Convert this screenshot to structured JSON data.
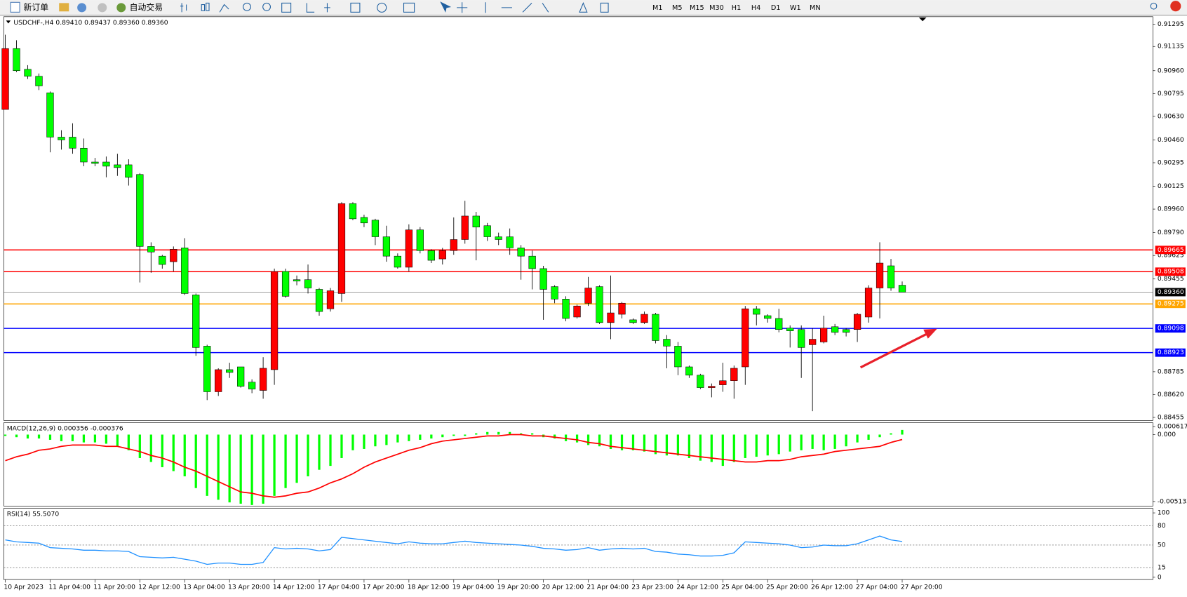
{
  "toolbar": {
    "new_order": "新订单",
    "auto_trading": "自动交易",
    "timeframes": [
      "M1",
      "M5",
      "M15",
      "M30",
      "H1",
      "H4",
      "D1",
      "W1",
      "MN"
    ]
  },
  "chart": {
    "header": "USDCHF-,H4  0.89410 0.89437 0.89360 0.89360",
    "bull_color": "#ff0000",
    "bear_color": "#00ff00",
    "open": [
      0.9068,
      0.9112,
      0.9097,
      0.9092,
      0.908,
      0.9048,
      0.9048,
      0.904,
      0.903,
      0.903,
      0.9028,
      0.9028,
      0.9021,
      0.8969,
      0.8962,
      0.8958,
      0.8968,
      0.8934,
      0.8897,
      0.8864,
      0.888,
      0.8882,
      0.8871,
      0.8865,
      0.888,
      0.8951,
      0.8945,
      0.8945,
      0.8938,
      0.8924,
      0.8935,
      0.9,
      0.899,
      0.8988,
      0.8976,
      0.8962,
      0.8954,
      0.8981,
      0.8966,
      0.896,
      0.8966,
      0.8974,
      0.8991,
      0.8984,
      0.8976,
      0.8976,
      0.8968,
      0.8962,
      0.8953,
      0.894,
      0.8931,
      0.8918,
      0.8928,
      0.894,
      0.8914,
      0.892,
      0.8916,
      0.8914,
      0.892,
      0.8902,
      0.8897,
      0.8882,
      0.8876,
      0.8867,
      0.8869,
      0.8872,
      0.8882,
      0.8924,
      0.8919,
      0.8917,
      0.891,
      0.8909,
      0.8898,
      0.89,
      0.8911,
      0.8909,
      0.8909,
      0.8918,
      0.8939,
      0.8955,
      0.8941
    ],
    "high": [
      0.9122,
      0.9118,
      0.91,
      0.9094,
      0.9081,
      0.9053,
      0.9058,
      0.9047,
      0.9033,
      0.9034,
      0.9036,
      0.9032,
      0.9022,
      0.8972,
      0.8963,
      0.8969,
      0.8975,
      0.8935,
      0.8898,
      0.8881,
      0.8885,
      0.8882,
      0.8873,
      0.8889,
      0.8953,
      0.8953,
      0.8948,
      0.8956,
      0.8939,
      0.8939,
      0.9001,
      0.9001,
      0.8992,
      0.8989,
      0.8984,
      0.8964,
      0.8985,
      0.8983,
      0.8967,
      0.8968,
      0.899,
      0.9002,
      0.8994,
      0.8986,
      0.8979,
      0.8982,
      0.897,
      0.8966,
      0.8955,
      0.8941,
      0.8933,
      0.8927,
      0.8947,
      0.8941,
      0.8948,
      0.8929,
      0.8917,
      0.8922,
      0.8921,
      0.8905,
      0.89,
      0.8883,
      0.8877,
      0.887,
      0.8885,
      0.8883,
      0.8926,
      0.8926,
      0.892,
      0.8924,
      0.8912,
      0.8912,
      0.891,
      0.8919,
      0.8913,
      0.891,
      0.8921,
      0.8941,
      0.8972,
      0.896,
      0.89437
    ],
    "low": [
      0.9068,
      0.9095,
      0.909,
      0.9082,
      0.9037,
      0.9039,
      0.9036,
      0.9027,
      0.9027,
      0.9019,
      0.902,
      0.9013,
      0.8943,
      0.895,
      0.8953,
      0.8951,
      0.8934,
      0.889,
      0.8858,
      0.8861,
      0.8874,
      0.8867,
      0.8863,
      0.8859,
      0.8869,
      0.8932,
      0.8941,
      0.8935,
      0.8919,
      0.8922,
      0.8929,
      0.8988,
      0.8983,
      0.897,
      0.8958,
      0.8953,
      0.8951,
      0.8964,
      0.8957,
      0.8956,
      0.8963,
      0.8971,
      0.8959,
      0.8973,
      0.897,
      0.8963,
      0.8945,
      0.8938,
      0.8916,
      0.8928,
      0.8915,
      0.8917,
      0.8926,
      0.8913,
      0.8902,
      0.8917,
      0.8913,
      0.8913,
      0.8899,
      0.8881,
      0.8876,
      0.8874,
      0.8866,
      0.886,
      0.8864,
      0.8859,
      0.8869,
      0.8912,
      0.8914,
      0.8907,
      0.8896,
      0.8874,
      0.885,
      0.8899,
      0.8905,
      0.8904,
      0.89,
      0.8914,
      0.8917,
      0.8937,
      0.8936
    ],
    "close": [
      0.9112,
      0.9096,
      0.9092,
      0.9085,
      0.9048,
      0.9046,
      0.904,
      0.903,
      0.9029,
      0.9027,
      0.9026,
      0.9019,
      0.8969,
      0.8965,
      0.8956,
      0.8967,
      0.8935,
      0.8896,
      0.8864,
      0.888,
      0.8878,
      0.8868,
      0.8866,
      0.8881,
      0.8951,
      0.8933,
      0.8944,
      0.8939,
      0.8922,
      0.8937,
      0.9,
      0.8989,
      0.8986,
      0.8976,
      0.8962,
      0.8954,
      0.8981,
      0.8966,
      0.8959,
      0.8966,
      0.8974,
      0.8991,
      0.8983,
      0.8976,
      0.8974,
      0.8968,
      0.8962,
      0.8953,
      0.8938,
      0.8931,
      0.8917,
      0.8926,
      0.8939,
      0.8914,
      0.8921,
      0.8928,
      0.8914,
      0.892,
      0.8901,
      0.8897,
      0.8882,
      0.8876,
      0.8867,
      0.8868,
      0.8872,
      0.8881,
      0.8924,
      0.892,
      0.8917,
      0.8909,
      0.8908,
      0.8896,
      0.8902,
      0.891,
      0.8907,
      0.8907,
      0.892,
      0.8939,
      0.8957,
      0.8939,
      0.8936
    ],
    "ylim": [
      0.88433,
      0.9135
    ],
    "yticks": [
      0.91295,
      0.91135,
      {
        "value": 0.9096,
        "label": "0.90960"
      },
      0.90795,
      {
        "value": 0.9063,
        "label": "0.90630"
      },
      {
        "value": 0.9046,
        "label": "0.90460"
      },
      0.90295,
      0.90125,
      {
        "value": 0.8996,
        "label": "0.89960"
      },
      {
        "value": 0.8979,
        "label": "0.89790"
      },
      0.89625,
      0.89455,
      0.88785,
      {
        "value": 0.8862,
        "label": "0.88620"
      },
      0.88455
    ],
    "levels": [
      {
        "value": 0.89665,
        "label": "0.89665",
        "color": "#ff0000"
      },
      {
        "value": 0.89508,
        "label": "0.89508",
        "color": "#ff0000"
      },
      {
        "value": 0.8936,
        "label": "0.89360",
        "color": "#000000"
      },
      {
        "value": 0.89275,
        "label": "0.89275",
        "color": "#ffa500"
      },
      {
        "value": 0.89098,
        "label": "0.89098",
        "color": "#0000ff"
      },
      {
        "value": 0.88923,
        "label": "0.88923",
        "color": "#0000ff"
      }
    ],
    "macd": {
      "label": "MACD(12,26,9) 0.000356 -0.000376",
      "hist_color": "#00ff00",
      "signal_color": "#ff0000",
      "histogram": [
        -0.0001,
        -0.0002,
        -0.0003,
        -0.0003,
        -0.0004,
        -0.0005,
        -0.0005,
        -0.0006,
        -0.0006,
        -0.0007,
        -0.0009,
        -0.0012,
        -0.0018,
        -0.0021,
        -0.0025,
        -0.0028,
        -0.0032,
        -0.0041,
        -0.0047,
        -0.005,
        -0.0052,
        -0.0053,
        -0.0054,
        -0.0053,
        -0.0047,
        -0.0041,
        -0.0037,
        -0.0032,
        -0.0027,
        -0.0024,
        -0.0018,
        -0.0012,
        -0.0011,
        -0.0009,
        -0.0008,
        -0.0006,
        -0.0005,
        -0.0004,
        -0.0003,
        -0.0002,
        -0.0001,
        -0.0001,
        0.0001,
        0.0002,
        0.0002,
        0.0002,
        0.0001,
        0.0001,
        -0.0002,
        -0.0003,
        -0.0005,
        -0.0006,
        -0.0008,
        -0.0009,
        -0.0011,
        -0.0012,
        -0.0012,
        -0.0013,
        -0.0015,
        -0.0016,
        -0.0016,
        -0.0018,
        -0.002,
        -0.0021,
        -0.0024,
        -0.0021,
        -0.0018,
        -0.0017,
        -0.0016,
        -0.0015,
        -0.0013,
        -0.0012,
        -0.0011,
        -0.0012,
        -0.0011,
        -0.0009,
        -0.0006,
        -0.0004,
        -0.0002,
        0.0001,
        0.000356
      ],
      "signal": [
        -0.002,
        -0.0017,
        -0.0015,
        -0.0012,
        -0.0011,
        -0.0009,
        -0.0008,
        -0.0008,
        -0.0008,
        -0.0009,
        -0.0009,
        -0.0011,
        -0.0013,
        -0.0016,
        -0.0018,
        -0.0021,
        -0.0025,
        -0.0028,
        -0.0032,
        -0.0036,
        -0.004,
        -0.0044,
        -0.0045,
        -0.0047,
        -0.0048,
        -0.0047,
        -0.0045,
        -0.0044,
        -0.0041,
        -0.0037,
        -0.0034,
        -0.003,
        -0.0025,
        -0.0021,
        -0.0018,
        -0.0015,
        -0.0012,
        -0.001,
        -0.0007,
        -0.0005,
        -0.0004,
        -0.0003,
        -0.0002,
        -0.0001,
        -0.0001,
        0.0,
        0.0,
        -0.0001,
        -0.0001,
        -0.0002,
        -0.0003,
        -0.0004,
        -0.0006,
        -0.0007,
        -0.0009,
        -0.001,
        -0.0011,
        -0.0012,
        -0.0013,
        -0.0014,
        -0.0015,
        -0.0016,
        -0.0017,
        -0.0018,
        -0.0019,
        -0.002,
        -0.0021,
        -0.0021,
        -0.002,
        -0.002,
        -0.0019,
        -0.0017,
        -0.0016,
        -0.0015,
        -0.0013,
        -0.0012,
        -0.0011,
        -0.001,
        -0.0009,
        -0.0006,
        -0.000376
      ],
      "ylim": [
        -0.00548,
        0.00091
      ],
      "yticks": [
        0.000617,
        {
          "value": 0,
          "label": "0.000"
        },
        -0.005133
      ]
    },
    "rsi": {
      "label": "RSI(14) 55.5070",
      "color": "#1e90ff",
      "values": [
        58,
        55,
        54,
        53,
        46,
        45,
        44,
        42,
        42,
        41,
        41,
        40,
        32,
        31,
        30,
        31,
        28,
        25,
        20,
        22,
        22,
        20,
        20,
        23,
        46,
        44,
        45,
        44,
        41,
        43,
        62,
        60,
        58,
        56,
        54,
        52,
        55,
        53,
        52,
        52,
        54,
        56,
        54,
        53,
        52,
        51,
        50,
        48,
        45,
        44,
        42,
        43,
        46,
        42,
        44,
        45,
        44,
        45,
        40,
        39,
        36,
        35,
        33,
        33,
        34,
        38,
        55,
        54,
        53,
        52,
        50,
        46,
        47,
        50,
        49,
        49,
        52,
        58,
        64,
        58,
        55.507
      ],
      "ylim": [
        0,
        100
      ],
      "yticks": [
        100,
        80,
        50,
        15,
        0
      ]
    },
    "time_labels": [
      "10 Apr 2023",
      "11 Apr 04:00",
      "11 Apr 20:00",
      "12 Apr 12:00",
      "13 Apr 04:00",
      "13 Apr 20:00",
      "14 Apr 12:00",
      "17 Apr 04:00",
      "17 Apr 20:00",
      "18 Apr 12:00",
      "19 Apr 04:00",
      "19 Apr 20:00",
      "20 Apr 12:00",
      "21 Apr 04:00",
      "23 Apr 23:00",
      "24 Apr 12:00",
      "25 Apr 04:00",
      "25 Apr 20:00",
      "26 Apr 12:00",
      "27 Apr 04:00",
      "27 Apr 20:00"
    ]
  }
}
